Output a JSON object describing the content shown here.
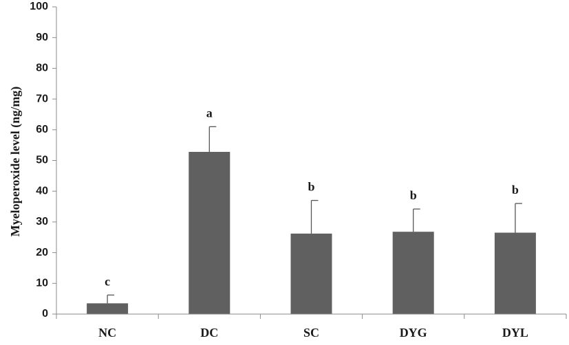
{
  "chart_data": {
    "type": "bar",
    "title": "",
    "xlabel": "",
    "ylabel": "Myeloperoxide level  (ng/mg)",
    "ylim": [
      0,
      100
    ],
    "yticks": [
      0,
      10,
      20,
      30,
      40,
      50,
      60,
      70,
      80,
      90,
      100
    ],
    "categories": [
      "NC",
      "DC",
      "SC",
      "DYG",
      "DYL"
    ],
    "values": [
      3.5,
      52.8,
      26.2,
      26.8,
      26.5
    ],
    "error_upper": [
      6.2,
      61.0,
      37.0,
      34.2,
      36.0
    ],
    "significance_labels": [
      "c",
      "a",
      "b",
      "b",
      "b"
    ],
    "bar_color": "#606060",
    "grid": false,
    "legend": "none"
  }
}
